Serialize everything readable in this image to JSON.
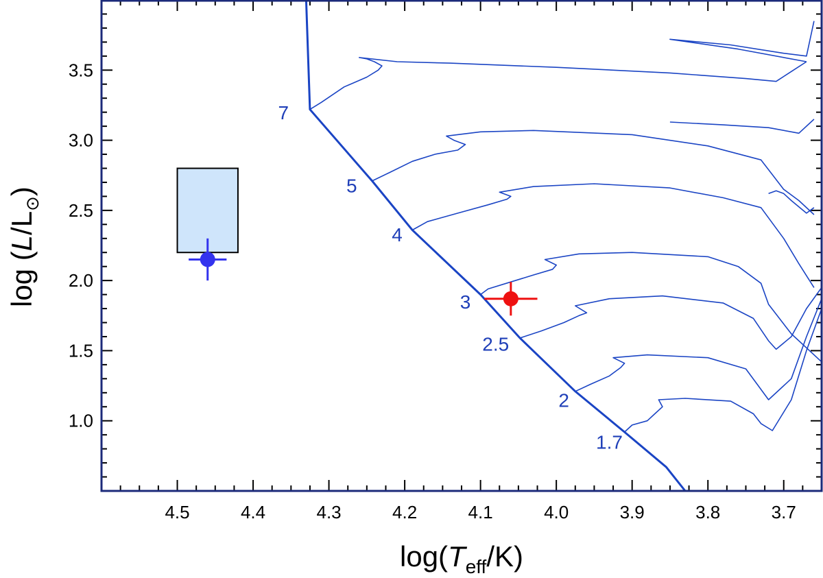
{
  "chart_data": {
    "type": "scatter",
    "title": "",
    "xlabel_prefix": "log(",
    "xlabel_italic": "T",
    "xlabel_sub": "eff",
    "xlabel_suffix": "/K)",
    "ylabel_prefix": "log (",
    "ylabel_italic": "L",
    "ylabel_mid": "/L",
    "ylabel_sun": "⊙",
    "ylabel_suffix": ")",
    "xlim": [
      4.6,
      3.65
    ],
    "ylim": [
      0.5,
      4.0
    ],
    "x_reversed": true,
    "x_ticks": [
      4.5,
      4.4,
      4.3,
      4.2,
      4.1,
      4.0,
      3.9,
      3.8,
      3.7
    ],
    "x_tick_labels": [
      "4.5",
      "4.4",
      "4.3",
      "4.2",
      "4.1",
      "4.0",
      "3.9",
      "3.8",
      "3.7"
    ],
    "y_ticks": [
      1.0,
      1.5,
      2.0,
      2.5,
      3.0,
      3.5
    ],
    "y_tick_labels": [
      "1.0",
      "1.5",
      "2.0",
      "2.5",
      "3.0",
      "3.5"
    ],
    "colors": {
      "track": "#1a44c4",
      "blue_star": "#3333ee",
      "red_star": "#ee1111",
      "box_fill": "#cfe5fb"
    },
    "zams_line": [
      [
        4.33,
        4.0
      ],
      [
        4.325,
        3.22
      ],
      [
        4.243,
        2.71
      ],
      [
        4.19,
        2.36
      ],
      [
        4.1,
        1.9
      ],
      [
        4.048,
        1.59
      ],
      [
        3.975,
        1.21
      ],
      [
        3.91,
        0.92
      ],
      [
        3.855,
        0.67
      ],
      [
        3.83,
        0.5
      ]
    ],
    "track_labels": [
      {
        "text": "7",
        "x": 4.36,
        "y": 3.15
      },
      {
        "text": "5",
        "x": 4.27,
        "y": 2.63
      },
      {
        "text": "4",
        "x": 4.21,
        "y": 2.28
      },
      {
        "text": "3",
        "x": 4.12,
        "y": 1.8
      },
      {
        "text": "2.5",
        "x": 4.08,
        "y": 1.5
      },
      {
        "text": "2",
        "x": 3.99,
        "y": 1.1
      },
      {
        "text": "1.7",
        "x": 3.93,
        "y": 0.8
      }
    ],
    "tracks": [
      {
        "mass": "7",
        "points": [
          [
            4.325,
            3.22
          ],
          [
            4.31,
            3.27
          ],
          [
            4.28,
            3.38
          ],
          [
            4.25,
            3.45
          ],
          [
            4.235,
            3.5
          ],
          [
            4.23,
            3.53
          ],
          [
            4.24,
            3.56
          ],
          [
            4.25,
            3.58
          ],
          [
            4.26,
            3.59
          ],
          [
            4.21,
            3.56
          ],
          [
            4.14,
            3.55
          ],
          [
            4.0,
            3.52
          ],
          [
            3.85,
            3.48
          ],
          [
            3.75,
            3.44
          ],
          [
            3.71,
            3.42
          ],
          [
            3.69,
            3.49
          ],
          [
            3.67,
            3.56
          ]
        ]
      },
      {
        "mass": "7-loop",
        "points": [
          [
            3.67,
            3.56
          ],
          [
            3.76,
            3.65
          ],
          [
            3.85,
            3.72
          ],
          [
            3.77,
            3.68
          ],
          [
            3.7,
            3.62
          ],
          [
            3.67,
            3.6
          ],
          [
            3.66,
            3.85
          ]
        ]
      },
      {
        "mass": "5",
        "points": [
          [
            4.243,
            2.71
          ],
          [
            4.22,
            2.77
          ],
          [
            4.19,
            2.85
          ],
          [
            4.16,
            2.9
          ],
          [
            4.13,
            2.93
          ],
          [
            4.12,
            2.97
          ],
          [
            4.135,
            3.0
          ],
          [
            4.145,
            3.03
          ],
          [
            4.1,
            3.06
          ],
          [
            4.03,
            3.07
          ],
          [
            3.9,
            3.04
          ],
          [
            3.8,
            2.96
          ],
          [
            3.73,
            2.86
          ],
          [
            3.7,
            2.65
          ],
          [
            3.68,
            2.57
          ],
          [
            3.66,
            2.47
          ]
        ]
      },
      {
        "mass": "5-loop",
        "points": [
          [
            3.85,
            3.13
          ],
          [
            3.78,
            3.11
          ],
          [
            3.72,
            3.09
          ],
          [
            3.68,
            3.05
          ],
          [
            3.66,
            3.15
          ]
        ]
      },
      {
        "mass": "4",
        "points": [
          [
            4.19,
            2.36
          ],
          [
            4.17,
            2.42
          ],
          [
            4.13,
            2.48
          ],
          [
            4.09,
            2.54
          ],
          [
            4.065,
            2.58
          ],
          [
            4.06,
            2.6
          ],
          [
            4.075,
            2.63
          ],
          [
            4.03,
            2.67
          ],
          [
            3.95,
            2.69
          ],
          [
            3.85,
            2.66
          ],
          [
            3.78,
            2.59
          ],
          [
            3.73,
            2.52
          ],
          [
            3.7,
            2.3
          ],
          [
            3.68,
            2.12
          ],
          [
            3.66,
            1.95
          ]
        ]
      },
      {
        "mass": "4-loop",
        "points": [
          [
            3.72,
            2.62
          ],
          [
            3.71,
            2.64
          ],
          [
            3.7,
            2.62
          ],
          [
            3.69,
            2.57
          ],
          [
            3.67,
            2.48
          ],
          [
            3.66,
            2.52
          ]
        ]
      },
      {
        "mass": "3",
        "points": [
          [
            4.1,
            1.9
          ],
          [
            4.09,
            1.94
          ],
          [
            4.06,
            1.99
          ],
          [
            4.03,
            2.04
          ],
          [
            4.005,
            2.08
          ],
          [
            4.0,
            2.11
          ],
          [
            4.015,
            2.15
          ],
          [
            3.97,
            2.19
          ],
          [
            3.9,
            2.2
          ],
          [
            3.8,
            2.17
          ],
          [
            3.76,
            2.1
          ],
          [
            3.73,
            1.98
          ],
          [
            3.72,
            1.83
          ],
          [
            3.69,
            1.62
          ],
          [
            3.67,
            1.52
          ],
          [
            3.65,
            1.42
          ]
        ]
      },
      {
        "mass": "2.5",
        "points": [
          [
            4.048,
            1.59
          ],
          [
            4.02,
            1.64
          ],
          [
            3.99,
            1.7
          ],
          [
            3.97,
            1.75
          ],
          [
            3.96,
            1.77
          ],
          [
            3.975,
            1.82
          ],
          [
            3.93,
            1.87
          ],
          [
            3.86,
            1.89
          ],
          [
            3.78,
            1.84
          ],
          [
            3.74,
            1.73
          ],
          [
            3.72,
            1.57
          ],
          [
            3.71,
            1.51
          ],
          [
            3.69,
            1.6
          ],
          [
            3.67,
            1.8
          ],
          [
            3.65,
            1.95
          ]
        ]
      },
      {
        "mass": "2",
        "points": [
          [
            3.975,
            1.21
          ],
          [
            3.955,
            1.26
          ],
          [
            3.93,
            1.32
          ],
          [
            3.915,
            1.38
          ],
          [
            3.91,
            1.41
          ],
          [
            3.925,
            1.45
          ],
          [
            3.88,
            1.47
          ],
          [
            3.8,
            1.45
          ],
          [
            3.75,
            1.37
          ],
          [
            3.735,
            1.26
          ],
          [
            3.72,
            1.15
          ],
          [
            3.69,
            1.3
          ],
          [
            3.67,
            1.6
          ],
          [
            3.65,
            1.87
          ]
        ]
      },
      {
        "mass": "1.7",
        "points": [
          [
            3.91,
            0.92
          ],
          [
            3.9,
            0.97
          ],
          [
            3.88,
            1.0
          ],
          [
            3.87,
            1.05
          ],
          [
            3.86,
            1.1
          ],
          [
            3.865,
            1.15
          ],
          [
            3.83,
            1.16
          ],
          [
            3.77,
            1.14
          ],
          [
            3.74,
            1.05
          ],
          [
            3.73,
            0.98
          ],
          [
            3.715,
            0.93
          ],
          [
            3.69,
            1.15
          ],
          [
            3.67,
            1.5
          ],
          [
            3.65,
            1.8
          ]
        ]
      }
    ],
    "box": {
      "x_min": 4.42,
      "x_max": 4.5,
      "y_min": 2.2,
      "y_max": 2.8
    },
    "stars": [
      {
        "x": 4.46,
        "y": 2.15,
        "x_err": 0.025,
        "y_err": 0.15,
        "color": "#3333ee"
      },
      {
        "x": 4.06,
        "y": 1.87,
        "x_err": 0.035,
        "y_err": 0.12,
        "color": "#ee1111"
      }
    ]
  }
}
